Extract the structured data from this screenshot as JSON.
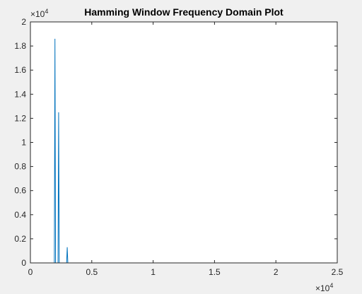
{
  "chart_data": {
    "type": "line",
    "title": "Hamming Window Frequency Domain Plot",
    "xlabel": "",
    "ylabel": "",
    "xlim": [
      0,
      25000
    ],
    "ylim": [
      0,
      20000
    ],
    "x_ticks": [
      0,
      5000,
      10000,
      15000,
      20000,
      25000
    ],
    "x_tick_labels": [
      "0",
      "0.5",
      "1",
      "1.5",
      "2",
      "2.5"
    ],
    "y_ticks": [
      0,
      2000,
      4000,
      6000,
      8000,
      10000,
      12000,
      14000,
      16000,
      18000,
      20000
    ],
    "y_tick_labels": [
      "0",
      "0.2",
      "0.4",
      "0.6",
      "0.8",
      "1",
      "1.2",
      "1.4",
      "1.6",
      "1.8",
      "2"
    ],
    "x_exponent_label": {
      "base": "×10",
      "power": "4"
    },
    "y_exponent_label": {
      "base": "×10",
      "power": "4"
    },
    "grid": false,
    "line_color": "#0072bd",
    "series": [
      {
        "x": [
          0,
          1950,
          2000,
          2050,
          2250,
          2300,
          2350,
          2950,
          3000,
          3050,
          25000
        ],
        "values": [
          0,
          0,
          18600,
          0,
          0,
          12500,
          0,
          0,
          1300,
          0,
          0
        ]
      }
    ]
  }
}
